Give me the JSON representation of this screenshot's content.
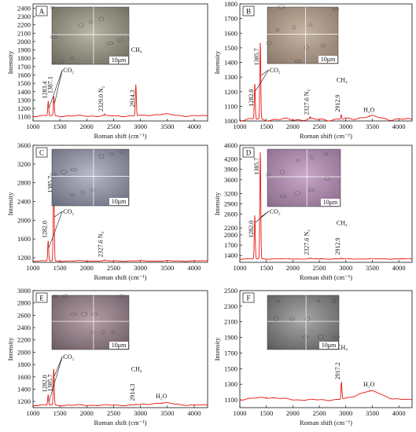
{
  "figure": {
    "xlabel": "Roman shift (cm⁻¹)",
    "ylabel": "Intensity",
    "scale_label": "10μm"
  },
  "chart_data": [
    {
      "type": "line",
      "panel_label": "A",
      "xlabel": "Roman shift (cm⁻¹)",
      "ylabel": "Intensity",
      "xlim": [
        1000,
        4250
      ],
      "ylim": [
        1050,
        2450
      ],
      "xticks": [
        1000,
        1500,
        2000,
        2500,
        3000,
        3500,
        4000
      ],
      "yticks": [
        1100,
        1200,
        1300,
        1400,
        1500,
        1600,
        1700,
        1800,
        1900,
        2000,
        2100,
        2200,
        2300,
        2400
      ],
      "baseline": 1110,
      "peaks": [
        {
          "x": 1283.4,
          "y": 1280
        },
        {
          "x": 1387.1,
          "y": 1340
        },
        {
          "x": 2329.0,
          "y": 1125
        },
        {
          "x": 2914.3,
          "y": 1480
        },
        {
          "x": 3400,
          "y": 1130,
          "width": 200
        }
      ],
      "annotations": [
        {
          "text": "1283.4",
          "x": 1283.4
        },
        {
          "text": "1387.1",
          "x": 1387.1
        },
        {
          "text": "CO₂",
          "x": 1560,
          "pointers": [
            1283.4,
            1387.1
          ]
        },
        {
          "text": "2329.0  N₂",
          "x": 2329.0
        },
        {
          "text": "2914.3",
          "x": 2914.3
        },
        {
          "text": "CH₄",
          "x": 2914.3
        }
      ]
    },
    {
      "type": "line",
      "panel_label": "B",
      "xlabel": "Roman shift (cm⁻¹)",
      "ylabel": "Intensity",
      "xlim": [
        1000,
        4250
      ],
      "ylim": [
        1000,
        1800
      ],
      "xticks": [
        1000,
        1500,
        2000,
        2500,
        3000,
        3500,
        4000
      ],
      "yticks": [
        1000,
        1100,
        1200,
        1300,
        1400,
        1500,
        1600,
        1700,
        1800
      ],
      "baseline": 1010,
      "peaks": [
        {
          "x": 1282.0,
          "y": 1250
        },
        {
          "x": 1385.7,
          "y": 1530
        },
        {
          "x": 2327.6,
          "y": 1020
        },
        {
          "x": 2912.9,
          "y": 1040
        },
        {
          "x": 3450,
          "y": 1030,
          "width": 200
        }
      ],
      "annotations": [
        {
          "text": "1282.0",
          "x": 1282.0
        },
        {
          "text": "1385.7",
          "x": 1385.7
        },
        {
          "text": "CO₂",
          "x": 1560,
          "pointers": [
            1282.0,
            1385.7
          ]
        },
        {
          "text": "2327.6  N₂",
          "x": 2327.6
        },
        {
          "text": "2912.9",
          "x": 2912.9
        },
        {
          "text": "CH₄",
          "x": 2912.9
        },
        {
          "text": "H₂O",
          "x": 3450
        }
      ]
    },
    {
      "type": "line",
      "panel_label": "C",
      "xlabel": "Roman shift (cm⁻¹)",
      "ylabel": "Intensity",
      "xlim": [
        1000,
        4250
      ],
      "ylim": [
        1100,
        3600
      ],
      "xticks": [
        1000,
        1500,
        2000,
        2500,
        3000,
        3500,
        4000
      ],
      "yticks": [
        1200,
        1600,
        2000,
        2400,
        2800,
        3200,
        3600
      ],
      "baseline": 1130,
      "peaks": [
        {
          "x": 1282.0,
          "y": 1550
        },
        {
          "x": 1385.7,
          "y": 3050
        },
        {
          "x": 2327.6,
          "y": 1145
        }
      ],
      "annotations": [
        {
          "text": "1282.0",
          "x": 1282.0
        },
        {
          "text": "1385.7",
          "x": 1385.7
        },
        {
          "text": "CO₂",
          "x": 1560,
          "pointers": [
            1282.0,
            1385.7
          ]
        },
        {
          "text": "2327.6  N₂",
          "x": 2327.6
        }
      ]
    },
    {
      "type": "line",
      "panel_label": "D",
      "xlabel": "Roman shift (cm⁻¹)",
      "ylabel": "Intensity",
      "xlim": [
        1000,
        4250
      ],
      "ylim": [
        1200,
        4600
      ],
      "xticks": [
        1000,
        1500,
        2000,
        2500,
        3000,
        3500,
        4000
      ],
      "yticks": [
        1400,
        1700,
        2000,
        2200,
        2600,
        2900,
        3200,
        3600,
        3900,
        4200,
        4600
      ],
      "baseline": 1300,
      "peaks": [
        {
          "x": 1282.0,
          "y": 2550
        },
        {
          "x": 1385.7,
          "y": 4380
        },
        {
          "x": 2327.6,
          "y": 1320
        },
        {
          "x": 2912.9,
          "y": 1325
        }
      ],
      "annotations": [
        {
          "text": "1282.0",
          "x": 1282.0
        },
        {
          "text": "1385.7",
          "x": 1385.7
        },
        {
          "text": "CO₂",
          "x": 1560,
          "pointers": [
            1282.0,
            1385.7
          ]
        },
        {
          "text": "2327.6  N₂",
          "x": 2327.6
        },
        {
          "text": "2912.9",
          "x": 2912.9
        },
        {
          "text": "CH₄",
          "x": 2912.9
        }
      ]
    },
    {
      "type": "line",
      "panel_label": "E",
      "xlabel": "Roman shift (cm⁻¹)",
      "ylabel": "Intensity",
      "xlim": [
        1000,
        4250
      ],
      "ylim": [
        1100,
        3000
      ],
      "xticks": [
        1000,
        1500,
        2000,
        2500,
        3000,
        3500,
        4000
      ],
      "yticks": [
        1200,
        1400,
        1600,
        1800,
        2000,
        2200,
        2400,
        2600,
        2800,
        3000
      ],
      "baseline": 1140,
      "peaks": [
        {
          "x": 1282.0,
          "y": 1300
        },
        {
          "x": 1385.7,
          "y": 1720
        },
        {
          "x": 2914.3,
          "y": 1155
        },
        {
          "x": 3400,
          "y": 1175,
          "width": 220
        }
      ],
      "annotations": [
        {
          "text": "1282.0",
          "x": 1282.0
        },
        {
          "text": "1385.7",
          "x": 1385.7
        },
        {
          "text": "CO₂",
          "x": 1560,
          "pointers": [
            1282.0,
            1385.7
          ]
        },
        {
          "text": "2914.3",
          "x": 2914.3
        },
        {
          "text": "CH₄",
          "x": 2914.3
        },
        {
          "text": "H₂O",
          "x": 3400
        }
      ]
    },
    {
      "type": "line",
      "panel_label": "F",
      "xlabel": "Roman shift (cm⁻¹)",
      "ylabel": "Intensity",
      "xlim": [
        1000,
        4250
      ],
      "ylim": [
        1000,
        2500
      ],
      "xticks": [
        1000,
        1500,
        2000,
        2500,
        3000,
        3500,
        4000
      ],
      "yticks": [
        1100,
        1300,
        1500,
        1700,
        1900,
        2100,
        2300,
        2500
      ],
      "baseline": 1100,
      "peaks": [
        {
          "x": 1500,
          "y": 1130,
          "width": 250
        },
        {
          "x": 2917.2,
          "y": 1320
        },
        {
          "x": 3450,
          "y": 1210,
          "width": 230
        }
      ],
      "annotations": [
        {
          "text": "2917.2",
          "x": 2917.2
        },
        {
          "text": "CH₄",
          "x": 2917.2
        },
        {
          "text": "H₂O",
          "x": 3450
        }
      ]
    }
  ],
  "insets": [
    {
      "panel": "A",
      "tone": [
        "#b9b7a7",
        "#6f6c60"
      ],
      "scale": "10μm"
    },
    {
      "panel": "B",
      "tone": [
        "#c6b4a4",
        "#8c7b6c"
      ],
      "scale": "10μm"
    },
    {
      "panel": "C",
      "tone": [
        "#b8b8c8",
        "#6c6f80"
      ],
      "scale": "10μm"
    },
    {
      "panel": "D",
      "tone": [
        "#c9a7c8",
        "#8d6e8e"
      ],
      "scale": "10μm"
    },
    {
      "panel": "E",
      "tone": [
        "#b8a0a8",
        "#6e5e66"
      ],
      "scale": "10μm"
    },
    {
      "panel": "F",
      "tone": [
        "#a9a9a9",
        "#5e5e5e"
      ],
      "scale": "10μm"
    }
  ],
  "colors": {
    "spectrum": "#e8140f",
    "axis": "#111111"
  }
}
